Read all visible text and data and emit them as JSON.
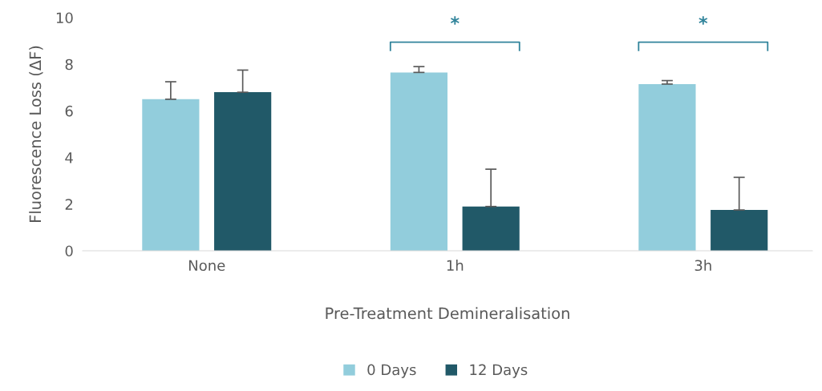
{
  "chart_data": {
    "type": "bar",
    "xlabel": "Pre-Treatment Demineralisation",
    "ylabel": "Fluorescence Loss (ΔF)",
    "categories": [
      "None",
      "1h",
      "3h"
    ],
    "series": [
      {
        "name": "0 Days",
        "color": "#92cddc",
        "values": [
          6.5,
          7.65,
          7.15
        ],
        "errors": [
          [
            6.5,
            7.25
          ],
          [
            7.65,
            7.9
          ],
          [
            7.15,
            7.3
          ]
        ]
      },
      {
        "name": "12 Days",
        "color": "#215968",
        "values": [
          6.8,
          1.9,
          1.75
        ],
        "errors": [
          [
            6.8,
            7.75
          ],
          [
            1.9,
            3.5
          ],
          [
            1.75,
            3.15
          ]
        ]
      }
    ],
    "ylim": [
      0,
      10
    ],
    "yticks": [
      0,
      2,
      4,
      6,
      8,
      10
    ],
    "grid": false,
    "legend": "bottom",
    "annotations": [
      "*",
      "*"
    ]
  }
}
